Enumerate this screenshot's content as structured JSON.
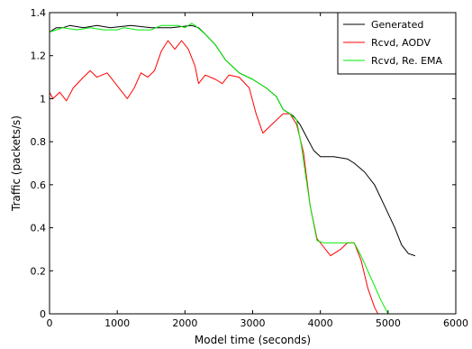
{
  "chart_data": {
    "type": "line",
    "xlabel": "Model time (seconds)",
    "ylabel": "Traffic (packets/s)",
    "xlim": [
      0,
      6000
    ],
    "ylim": [
      0,
      1.4
    ],
    "xticks": [
      0,
      1000,
      2000,
      3000,
      4000,
      5000,
      6000
    ],
    "xtick_labels": [
      "0",
      "1000",
      "2000",
      "3000",
      "4000",
      "5000",
      "6000"
    ],
    "yticks": [
      0,
      0.2,
      0.4,
      0.6,
      0.8,
      1,
      1.2,
      1.4
    ],
    "ytick_labels": [
      "0",
      "0.2",
      "0.4",
      "0.6",
      "0.8",
      "1",
      "1.2",
      "1.4"
    ],
    "grid": false,
    "legend_position": "top-right",
    "series": [
      {
        "name": "Generated",
        "color": "#000000",
        "points": [
          [
            0,
            1.31
          ],
          [
            100,
            1.33
          ],
          [
            200,
            1.33
          ],
          [
            300,
            1.34
          ],
          [
            500,
            1.33
          ],
          [
            700,
            1.34
          ],
          [
            900,
            1.33
          ],
          [
            1200,
            1.34
          ],
          [
            1500,
            1.33
          ],
          [
            1800,
            1.33
          ],
          [
            2100,
            1.34
          ],
          [
            2200,
            1.33
          ],
          [
            2300,
            1.3
          ],
          [
            2450,
            1.25
          ],
          [
            2600,
            1.18
          ],
          [
            2800,
            1.12
          ],
          [
            3000,
            1.09
          ],
          [
            3200,
            1.05
          ],
          [
            3350,
            1.01
          ],
          [
            3450,
            0.95
          ],
          [
            3600,
            0.92
          ],
          [
            3700,
            0.88
          ],
          [
            3800,
            0.82
          ],
          [
            3900,
            0.76
          ],
          [
            4000,
            0.73
          ],
          [
            4200,
            0.73
          ],
          [
            4400,
            0.72
          ],
          [
            4500,
            0.7
          ],
          [
            4650,
            0.66
          ],
          [
            4800,
            0.6
          ],
          [
            4950,
            0.5
          ],
          [
            5100,
            0.4
          ],
          [
            5200,
            0.32
          ],
          [
            5300,
            0.28
          ],
          [
            5400,
            0.27
          ]
        ]
      },
      {
        "name": "Rcvd, AODV",
        "color": "#ff0000",
        "points": [
          [
            0,
            1.03
          ],
          [
            50,
            1.0
          ],
          [
            150,
            1.03
          ],
          [
            250,
            0.99
          ],
          [
            350,
            1.05
          ],
          [
            500,
            1.1
          ],
          [
            600,
            1.13
          ],
          [
            700,
            1.1
          ],
          [
            850,
            1.12
          ],
          [
            950,
            1.08
          ],
          [
            1050,
            1.04
          ],
          [
            1150,
            1.0
          ],
          [
            1250,
            1.05
          ],
          [
            1350,
            1.12
          ],
          [
            1450,
            1.1
          ],
          [
            1550,
            1.13
          ],
          [
            1650,
            1.22
          ],
          [
            1750,
            1.27
          ],
          [
            1850,
            1.23
          ],
          [
            1950,
            1.27
          ],
          [
            2050,
            1.23
          ],
          [
            2150,
            1.15
          ],
          [
            2200,
            1.07
          ],
          [
            2300,
            1.11
          ],
          [
            2450,
            1.09
          ],
          [
            2550,
            1.07
          ],
          [
            2650,
            1.11
          ],
          [
            2800,
            1.1
          ],
          [
            2950,
            1.05
          ],
          [
            3050,
            0.93
          ],
          [
            3150,
            0.84
          ],
          [
            3250,
            0.87
          ],
          [
            3350,
            0.9
          ],
          [
            3450,
            0.93
          ],
          [
            3550,
            0.93
          ],
          [
            3650,
            0.88
          ],
          [
            3750,
            0.75
          ],
          [
            3850,
            0.5
          ],
          [
            3950,
            0.35
          ],
          [
            4050,
            0.31
          ],
          [
            4150,
            0.27
          ],
          [
            4300,
            0.3
          ],
          [
            4400,
            0.33
          ],
          [
            4500,
            0.33
          ],
          [
            4600,
            0.25
          ],
          [
            4700,
            0.12
          ],
          [
            4800,
            0.03
          ],
          [
            4850,
            0.0
          ]
        ]
      },
      {
        "name": "Rcvd, Re. EMA",
        "color": "#00ee00",
        "points": [
          [
            0,
            1.31
          ],
          [
            100,
            1.32
          ],
          [
            200,
            1.33
          ],
          [
            400,
            1.32
          ],
          [
            600,
            1.33
          ],
          [
            800,
            1.32
          ],
          [
            1000,
            1.32
          ],
          [
            1100,
            1.33
          ],
          [
            1300,
            1.32
          ],
          [
            1500,
            1.32
          ],
          [
            1650,
            1.34
          ],
          [
            1900,
            1.34
          ],
          [
            2000,
            1.33
          ],
          [
            2100,
            1.35
          ],
          [
            2150,
            1.34
          ],
          [
            2300,
            1.3
          ],
          [
            2450,
            1.25
          ],
          [
            2600,
            1.18
          ],
          [
            2800,
            1.12
          ],
          [
            3000,
            1.09
          ],
          [
            3200,
            1.05
          ],
          [
            3350,
            1.01
          ],
          [
            3450,
            0.95
          ],
          [
            3550,
            0.93
          ],
          [
            3650,
            0.9
          ],
          [
            3720,
            0.78
          ],
          [
            3780,
            0.65
          ],
          [
            3850,
            0.5
          ],
          [
            3950,
            0.34
          ],
          [
            4050,
            0.33
          ],
          [
            4400,
            0.33
          ],
          [
            4500,
            0.33
          ],
          [
            4600,
            0.27
          ],
          [
            4700,
            0.2
          ],
          [
            4800,
            0.13
          ],
          [
            4900,
            0.06
          ],
          [
            5000,
            0.0
          ]
        ]
      }
    ]
  }
}
